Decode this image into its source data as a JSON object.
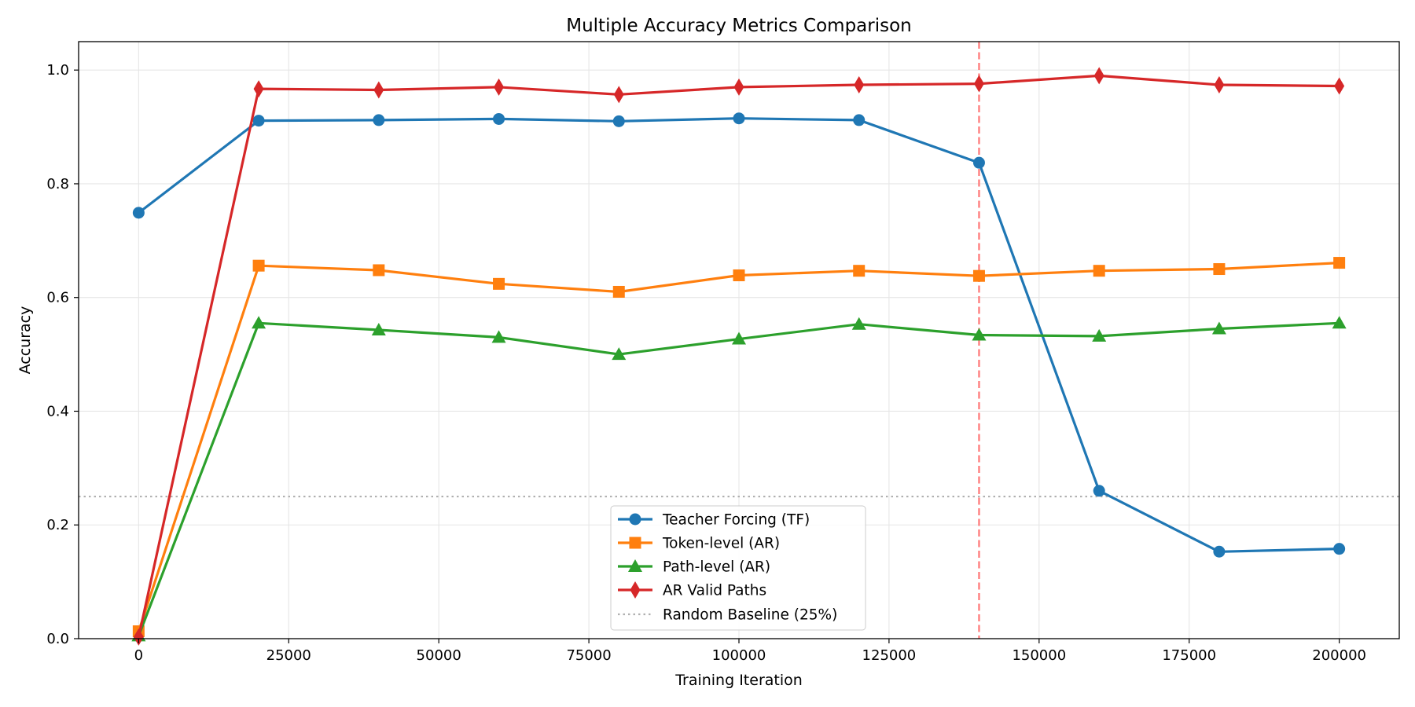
{
  "chart_data": {
    "type": "line",
    "title": "Multiple Accuracy Metrics Comparison",
    "xlabel": "Training Iteration",
    "ylabel": "Accuracy",
    "xlim": [
      -10000,
      210000
    ],
    "ylim": [
      0,
      1.05
    ],
    "xticks": [
      0,
      25000,
      50000,
      75000,
      100000,
      125000,
      150000,
      175000,
      200000
    ],
    "yticks": [
      0.0,
      0.2,
      0.4,
      0.6,
      0.8,
      1.0
    ],
    "grid": true,
    "legend_position": "lower center",
    "x": [
      0,
      20000,
      40000,
      60000,
      80000,
      100000,
      120000,
      140000,
      160000,
      180000,
      200000
    ],
    "series": [
      {
        "name": "Teacher Forcing (TF)",
        "color": "#1f77b4",
        "marker": "circle",
        "values": [
          0.749,
          0.911,
          0.912,
          0.914,
          0.91,
          0.915,
          0.912,
          0.837,
          0.26,
          0.153,
          0.158
        ]
      },
      {
        "name": "Token-level (AR)",
        "color": "#ff7f0e",
        "marker": "square",
        "values": [
          0.013,
          0.656,
          0.648,
          0.624,
          0.61,
          0.639,
          0.647,
          0.638,
          0.647,
          0.65,
          0.661
        ]
      },
      {
        "name": "Path-level (AR)",
        "color": "#2ca02c",
        "marker": "triangle",
        "values": [
          0.005,
          0.555,
          0.543,
          0.53,
          0.5,
          0.527,
          0.553,
          0.534,
          0.532,
          0.545,
          0.555
        ]
      },
      {
        "name": "AR Valid Paths",
        "color": "#d62728",
        "marker": "diamond",
        "values": [
          0.003,
          0.967,
          0.965,
          0.97,
          0.957,
          0.97,
          0.974,
          0.976,
          0.99,
          0.974,
          0.972
        ]
      }
    ],
    "reference_lines": [
      {
        "name": "Random Baseline (25%)",
        "orientation": "horizontal",
        "value": 0.25,
        "style": "dotted",
        "color": "#b0b0b0"
      },
      {
        "orientation": "vertical",
        "value": 140000,
        "style": "dashed",
        "color": "#ff7f7f"
      }
    ]
  }
}
